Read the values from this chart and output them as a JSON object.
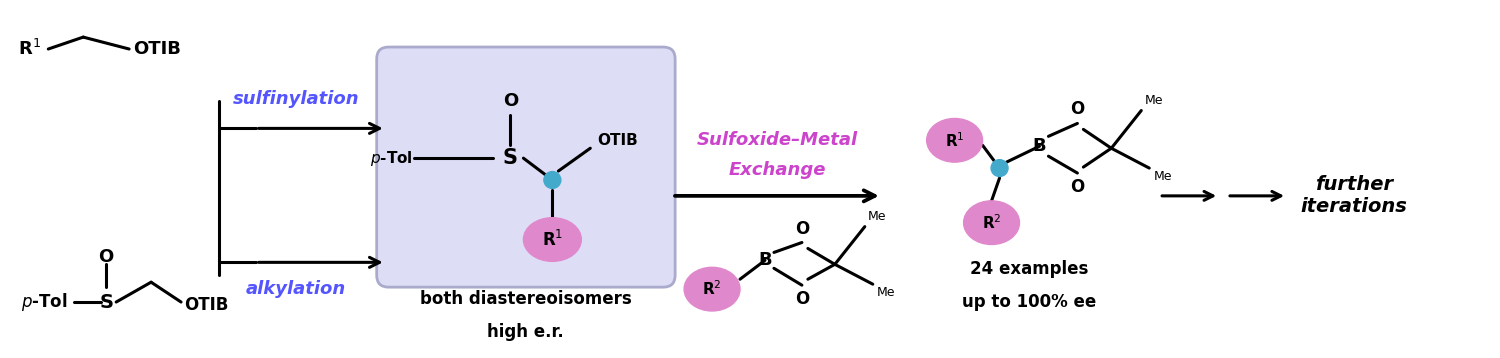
{
  "bg_color": "#ffffff",
  "blue_color": "#5555ff",
  "magenta_color": "#cc44cc",
  "pink_fill": "#e088cc",
  "cyan_color": "#44aacc",
  "box_fill": "#ddddf5",
  "box_edge": "#aaaacc",
  "arrow_color": "#000000",
  "text_color": "#000000",
  "figsize": [
    15.0,
    3.58
  ],
  "dpi": 100,
  "sulfinylation_text": "sulfinylation",
  "alkylation_text": "alkylation",
  "box_R1": "R$^1$",
  "both_diast": "both diastereoisomers",
  "high_er": "high e.r.",
  "sulfoxide_metal_line1": "Sulfoxide–Metal",
  "sulfoxide_metal_line2": "Exchange",
  "examples_text": "24 examples",
  "ee_text": "up to 100% ee",
  "further_iter": "further\niterations"
}
